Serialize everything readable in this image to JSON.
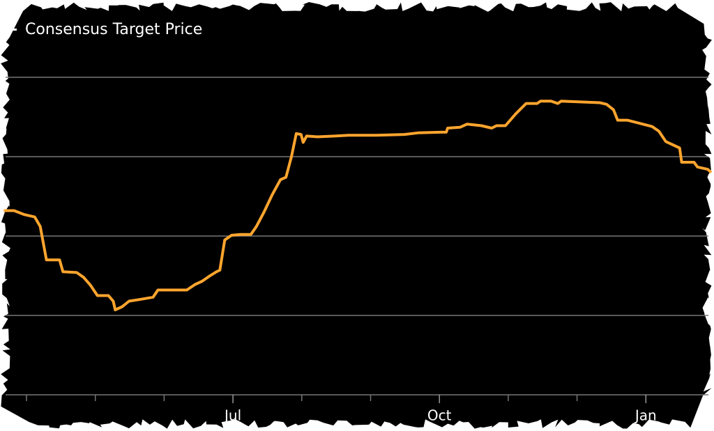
{
  "chart_data": {
    "type": "line",
    "title": "Consensus Target Price",
    "xlim": [
      -0.385,
      9.99
    ],
    "xticks": [
      {
        "value": 3,
        "label": "Jul"
      },
      {
        "value": 6,
        "label": "Oct"
      },
      {
        "value": 9,
        "label": "Jan"
      }
    ],
    "xminor": [
      0,
      1,
      2,
      4,
      5,
      7,
      8
    ],
    "ylim": [
      0,
      5
    ],
    "yticks": [
      1,
      2,
      3,
      4
    ],
    "grid": true,
    "series": [
      {
        "color": "#ffa52e",
        "x": [
          -0.33,
          -0.18,
          -0.03,
          0.12,
          0.2,
          0.29,
          0.48,
          0.53,
          0.73,
          0.83,
          0.93,
          1.03,
          1.19,
          1.26,
          1.29,
          1.39,
          1.49,
          1.64,
          1.84,
          1.91,
          2.1,
          2.33,
          2.45,
          2.55,
          2.65,
          2.76,
          2.81,
          2.88,
          2.98,
          3.11,
          3.26,
          3.34,
          3.45,
          3.57,
          3.69,
          3.77,
          3.85,
          3.92,
          3.99,
          4.02,
          4.07,
          4.23,
          4.48,
          4.68,
          5.09,
          5.49,
          5.69,
          6.1,
          6.12,
          6.3,
          6.4,
          6.61,
          6.76,
          6.83,
          6.96,
          7.11,
          7.26,
          7.42,
          7.47,
          7.62,
          7.72,
          7.77,
          8.02,
          8.33,
          8.43,
          8.53,
          8.59,
          8.73,
          9.09,
          9.19,
          9.29,
          9.49,
          9.52,
          9.7,
          9.75,
          9.9,
          9.95
        ],
        "values": [
          2.32,
          2.32,
          2.27,
          2.24,
          2.12,
          1.7,
          1.7,
          1.55,
          1.54,
          1.48,
          1.38,
          1.25,
          1.25,
          1.18,
          1.07,
          1.11,
          1.18,
          1.2,
          1.23,
          1.32,
          1.32,
          1.32,
          1.39,
          1.43,
          1.49,
          1.55,
          1.57,
          1.95,
          2.01,
          2.02,
          2.02,
          2.12,
          2.3,
          2.52,
          2.71,
          2.74,
          3.0,
          3.29,
          3.28,
          3.18,
          3.26,
          3.25,
          3.26,
          3.27,
          3.27,
          3.28,
          3.3,
          3.31,
          3.36,
          3.37,
          3.41,
          3.39,
          3.36,
          3.39,
          3.39,
          3.54,
          3.67,
          3.67,
          3.7,
          3.7,
          3.67,
          3.7,
          3.69,
          3.68,
          3.66,
          3.59,
          3.46,
          3.46,
          3.38,
          3.32,
          3.19,
          3.11,
          2.93,
          2.93,
          2.87,
          2.84,
          2.8
        ]
      }
    ]
  }
}
